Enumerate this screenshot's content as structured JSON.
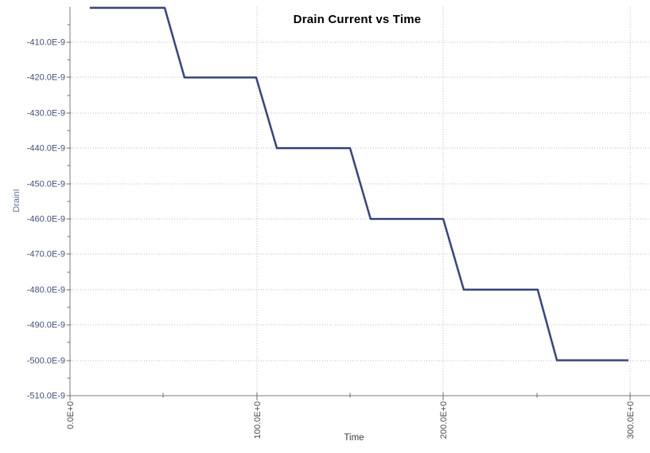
{
  "chart_data": {
    "type": "line",
    "title": "Drain Current vs Time",
    "xlabel": "Time",
    "ylabel": "DrainI",
    "xlim": [
      0,
      300
    ],
    "ylim": [
      -510,
      -400
    ],
    "x_major_ticks": [
      {
        "value": 0,
        "label": "0.0E+0"
      },
      {
        "value": 100,
        "label": "100.0E+0"
      },
      {
        "value": 200,
        "label": "200.0E+0"
      },
      {
        "value": 300,
        "label": "300.0E+0"
      }
    ],
    "x_minor_ticks": [
      50,
      150,
      250
    ],
    "y_major_ticks": [
      {
        "value": -410,
        "label": "-410.0E-9"
      },
      {
        "value": -420,
        "label": "-420.0E-9"
      },
      {
        "value": -430,
        "label": "-430.0E-9"
      },
      {
        "value": -440,
        "label": "-440.0E-9"
      },
      {
        "value": -450,
        "label": "-450.0E-9"
      },
      {
        "value": -460,
        "label": "-460.0E-9"
      },
      {
        "value": -470,
        "label": "-470.0E-9"
      },
      {
        "value": -480,
        "label": "-480.0E-9"
      },
      {
        "value": -490,
        "label": "-490.0E-9"
      },
      {
        "value": -500,
        "label": "-500.0E-9"
      },
      {
        "value": -510,
        "label": "-510.0E-9"
      }
    ],
    "y_minor_ticks": [
      -405,
      -415,
      -425,
      -435,
      -445,
      -455,
      -465,
      -475,
      -485,
      -495,
      -505
    ],
    "grid": {
      "horizontal": true,
      "vertical": true,
      "style": "dotted"
    },
    "legend_position": "none",
    "series": [
      {
        "name": "DrainI",
        "color": "#313f72",
        "points": [
          [
            10.6,
            -400.3
          ],
          [
            50.7,
            -400.3
          ],
          [
            61.3,
            -420.0
          ],
          [
            99.7,
            -420.0
          ],
          [
            110.8,
            -440.0
          ],
          [
            150.0,
            -440.0
          ],
          [
            161.0,
            -460.0
          ],
          [
            199.9,
            -460.0
          ],
          [
            210.9,
            -480.0
          ],
          [
            250.5,
            -480.0
          ],
          [
            260.8,
            -500.0
          ],
          [
            299.1,
            -500.0
          ]
        ]
      }
    ]
  },
  "colors": {
    "background": "#ffffff",
    "line": "#313f72",
    "line_halo": "#8a96c0",
    "grid": "#b9b9b9",
    "axis": "#7d7d7d",
    "tick": "#6f6f6f",
    "y_tick_text": "#46507b",
    "x_tick_text": "#4d4d4d",
    "title_text": "#000000",
    "xlabel_text": "#3c3c3c",
    "ylabel_text": "#67759c"
  }
}
